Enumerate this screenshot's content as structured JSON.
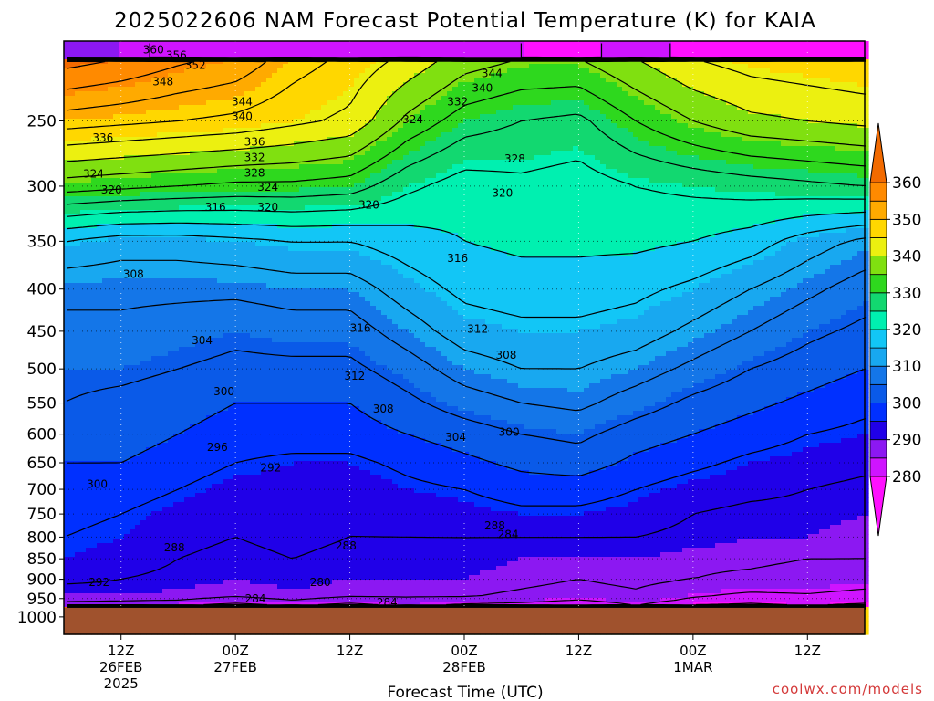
{
  "title": "2025022606 NAM Forecast Potential Temperature (K) for KAIA",
  "xlabel": "Forecast Time (UTC)",
  "credit": "coolwx.com/models",
  "colors": {
    "ground": "#a0522d",
    "contour": "#000000",
    "levels": [
      {
        "min": 275,
        "color": "#ff10ff"
      },
      {
        "min": 280,
        "color": "#cf14ff"
      },
      {
        "min": 285,
        "color": "#8c18f2"
      },
      {
        "min": 290,
        "color": "#2000e8"
      },
      {
        "min": 295,
        "color": "#0030ff"
      },
      {
        "min": 300,
        "color": "#0a5ae8"
      },
      {
        "min": 305,
        "color": "#1476e8"
      },
      {
        "min": 310,
        "color": "#18a8f0"
      },
      {
        "min": 315,
        "color": "#12c6f6"
      },
      {
        "min": 320,
        "color": "#00f0b0"
      },
      {
        "min": 325,
        "color": "#12d870"
      },
      {
        "min": 330,
        "color": "#2ed81e"
      },
      {
        "min": 335,
        "color": "#80e010"
      },
      {
        "min": 340,
        "color": "#ecf010"
      },
      {
        "min": 345,
        "color": "#ffd700"
      },
      {
        "min": 350,
        "color": "#ffaa00"
      },
      {
        "min": 355,
        "color": "#ff8a00"
      },
      {
        "min": 360,
        "color": "#f26a00"
      }
    ]
  },
  "chart_data": {
    "type": "heatmap",
    "title": "2025022606 NAM Forecast Potential Temperature (K) for KAIA",
    "xlabel": "Forecast Time (UTC)",
    "ylabel": "",
    "x_ticks": [
      {
        "h": 6,
        "line1": "12Z",
        "line2": "26FEB",
        "line3": "2025"
      },
      {
        "h": 18,
        "line1": "00Z",
        "line2": "27FEB",
        "line3": ""
      },
      {
        "h": 30,
        "line1": "12Z",
        "line2": "",
        "line3": ""
      },
      {
        "h": 42,
        "line1": "00Z",
        "line2": "28FEB",
        "line3": ""
      },
      {
        "h": 54,
        "line1": "12Z",
        "line2": "",
        "line3": ""
      },
      {
        "h": 66,
        "line1": "00Z",
        "line2": "1MAR",
        "line3": ""
      },
      {
        "h": 78,
        "line1": "12Z",
        "line2": "",
        "line3": ""
      }
    ],
    "xlim_hours": [
      0,
      84
    ],
    "y_ticks": [
      1000,
      950,
      900,
      850,
      800,
      750,
      700,
      650,
      600,
      550,
      500,
      450,
      400,
      350,
      300,
      250
    ],
    "y_scale": "log-pressure (hPa), inverted",
    "ylim_hpa": [
      1050,
      200
    ],
    "surface_pressure_hpa": 975,
    "colorbar": {
      "ticks": [
        360,
        350,
        340,
        330,
        320,
        310,
        300,
        290,
        280
      ],
      "range": [
        275,
        365
      ]
    },
    "grid": "dotted",
    "pressure_levels": [
      975,
      950,
      925,
      900,
      850,
      800,
      750,
      700,
      650,
      600,
      550,
      500,
      450,
      400,
      350,
      300,
      250,
      210
    ],
    "times_hours": [
      0,
      6,
      12,
      18,
      24,
      30,
      36,
      42,
      48,
      54,
      60,
      66,
      72,
      78,
      84
    ],
    "theta_K": [
      [
        286,
        285,
        283,
        280,
        283,
        280,
        284,
        281,
        280,
        278,
        283,
        278,
        278,
        279,
        278
      ],
      [
        289,
        289,
        289,
        288,
        289,
        288,
        288,
        288,
        287,
        285,
        287,
        284,
        282,
        283,
        282
      ],
      [
        291,
        291,
        290,
        289,
        290,
        289,
        289,
        289,
        288,
        287,
        288,
        286,
        285,
        285,
        284
      ],
      [
        293,
        292,
        291,
        290,
        291,
        290,
        290,
        290,
        289,
        288,
        289,
        288,
        287,
        286,
        286
      ],
      [
        295,
        294,
        292,
        291,
        292,
        291,
        291,
        291,
        290,
        290,
        290,
        289,
        289,
        288,
        288
      ],
      [
        296,
        295,
        293,
        292,
        293,
        292,
        292,
        292,
        292,
        292,
        292,
        291,
        290,
        290,
        289
      ],
      [
        297,
        296,
        294,
        293,
        293,
        292,
        293,
        294,
        295,
        295,
        294,
        292,
        291,
        291,
        290
      ],
      [
        299,
        298,
        296,
        294,
        294,
        293,
        295,
        296,
        298,
        298,
        296,
        294,
        293,
        292,
        291
      ],
      [
        300,
        300,
        298,
        296,
        295,
        295,
        297,
        299,
        301,
        302,
        299,
        297,
        295,
        294,
        293
      ],
      [
        302,
        302,
        300,
        298,
        298,
        298,
        300,
        302,
        304,
        305,
        302,
        300,
        298,
        296,
        295
      ],
      [
        304,
        303,
        302,
        300,
        300,
        300,
        303,
        306,
        308,
        309,
        306,
        303,
        301,
        299,
        297
      ],
      [
        305,
        305,
        304,
        303,
        303,
        303,
        306,
        310,
        312,
        312,
        310,
        307,
        304,
        302,
        300
      ],
      [
        307,
        307,
        306,
        305,
        306,
        306,
        310,
        314,
        315,
        315,
        314,
        311,
        308,
        305,
        303
      ],
      [
        309,
        309,
        309,
        309,
        310,
        310,
        314,
        317,
        318,
        318,
        317,
        315,
        312,
        309,
        306
      ],
      [
        316,
        314,
        314,
        315,
        316,
        316,
        318,
        320,
        321,
        321,
        321,
        320,
        318,
        314,
        311
      ],
      [
        334,
        333,
        332,
        331,
        331,
        330,
        325,
        322,
        323,
        322,
        324,
        325,
        326,
        327,
        328
      ],
      [
        350,
        349,
        348,
        347,
        345,
        343,
        335,
        330,
        328,
        327,
        332,
        336,
        339,
        340,
        341
      ],
      [
        362,
        360,
        357,
        355,
        350,
        347,
        343,
        338,
        336,
        336,
        340,
        344,
        346,
        347,
        348
      ]
    ],
    "contour_labels": [
      {
        "text": "360",
        "t": 9.4,
        "p": 205
      },
      {
        "text": "356",
        "t": 11.8,
        "p": 208
      },
      {
        "text": "352",
        "t": 13.8,
        "p": 214
      },
      {
        "text": "348",
        "t": 10.4,
        "p": 224
      },
      {
        "text": "344",
        "t": 18.7,
        "p": 237
      },
      {
        "text": "340",
        "t": 18.7,
        "p": 247
      },
      {
        "text": "336",
        "t": 4.1,
        "p": 262
      },
      {
        "text": "336",
        "t": 20.0,
        "p": 265
      },
      {
        "text": "332",
        "t": 20.0,
        "p": 277
      },
      {
        "text": "328",
        "t": 20.0,
        "p": 289
      },
      {
        "text": "324",
        "t": 3.1,
        "p": 290
      },
      {
        "text": "324",
        "t": 21.4,
        "p": 301
      },
      {
        "text": "320",
        "t": 5.0,
        "p": 303
      },
      {
        "text": "320",
        "t": 21.4,
        "p": 318
      },
      {
        "text": "316",
        "t": 15.9,
        "p": 318
      },
      {
        "text": "308",
        "t": 7.3,
        "p": 384
      },
      {
        "text": "304",
        "t": 14.5,
        "p": 462
      },
      {
        "text": "300",
        "t": 16.8,
        "p": 533
      },
      {
        "text": "296",
        "t": 16.1,
        "p": 622
      },
      {
        "text": "292",
        "t": 21.7,
        "p": 659
      },
      {
        "text": "300",
        "t": 3.5,
        "p": 690
      },
      {
        "text": "288",
        "t": 11.6,
        "p": 824
      },
      {
        "text": "292",
        "t": 3.7,
        "p": 908
      },
      {
        "text": "284",
        "t": 20.1,
        "p": 950
      },
      {
        "text": "280",
        "t": 26.9,
        "p": 908
      },
      {
        "text": "324",
        "t": 36.6,
        "p": 249
      },
      {
        "text": "320",
        "t": 32.0,
        "p": 316
      },
      {
        "text": "316",
        "t": 41.3,
        "p": 367
      },
      {
        "text": "316",
        "t": 31.1,
        "p": 446
      },
      {
        "text": "312",
        "t": 30.5,
        "p": 510
      },
      {
        "text": "308",
        "t": 33.5,
        "p": 559
      },
      {
        "text": "304",
        "t": 41.1,
        "p": 605
      },
      {
        "text": "288",
        "t": 29.6,
        "p": 820
      },
      {
        "text": "284",
        "t": 33.9,
        "p": 960
      },
      {
        "text": "344",
        "t": 44.9,
        "p": 219
      },
      {
        "text": "340",
        "t": 43.9,
        "p": 228
      },
      {
        "text": "332",
        "t": 41.3,
        "p": 237
      },
      {
        "text": "328",
        "t": 47.3,
        "p": 278
      },
      {
        "text": "320",
        "t": 46.0,
        "p": 306
      },
      {
        "text": "312",
        "t": 43.4,
        "p": 447
      },
      {
        "text": "308",
        "t": 46.4,
        "p": 481
      },
      {
        "text": "300",
        "t": 46.7,
        "p": 597
      },
      {
        "text": "288",
        "t": 45.2,
        "p": 775
      },
      {
        "text": "284",
        "t": 46.6,
        "p": 794
      }
    ]
  }
}
